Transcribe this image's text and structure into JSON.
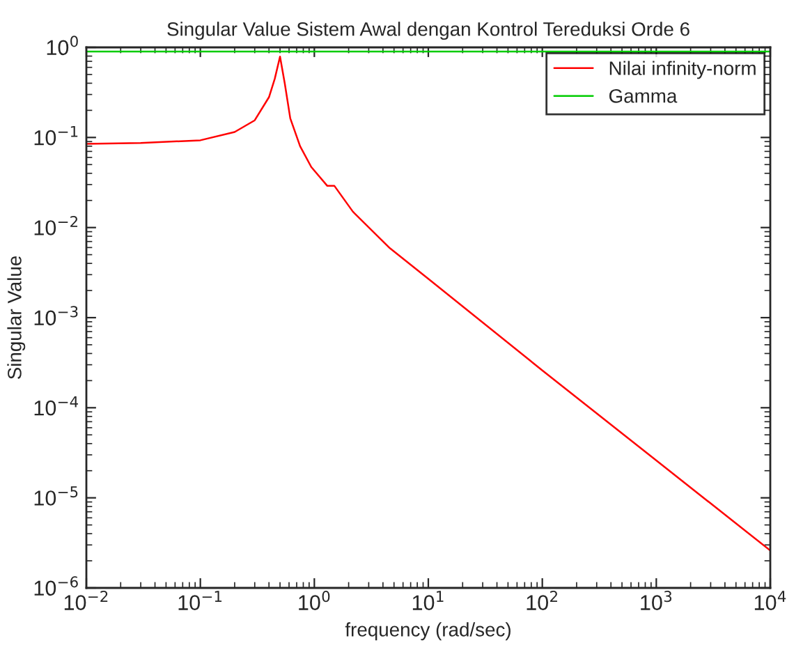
{
  "chart_data": {
    "type": "line",
    "title": "Singular Value Sistem Awal dengan Kontrol Tereduksi Orde 6",
    "xlabel": "frequency (rad/sec)",
    "ylabel": "Singular Value",
    "log": "xy",
    "grid": false,
    "legend": "top right",
    "marker": "none",
    "line_style": "solid",
    "xlim": [
      0.01,
      10000
    ],
    "ylim": [
      1e-06,
      1
    ],
    "xticks": [
      {
        "value": 0.01,
        "label": "10$^{−2}$"
      },
      {
        "value": 0.1,
        "label": "10$^{−1}$"
      },
      {
        "value": 1,
        "label": "10$^{0}$"
      },
      {
        "value": 10,
        "label": "10$^{1}$"
      },
      {
        "value": 100,
        "label": "10$^{2}$"
      },
      {
        "value": 1000,
        "label": "10$^{3}$"
      },
      {
        "value": 10000,
        "label": "10$^{4}$"
      }
    ],
    "yticks": [
      {
        "value": 1e-06,
        "label": "10$^{−6}$"
      },
      {
        "value": 1e-05,
        "label": "10$^{−5}$"
      },
      {
        "value": 0.0001,
        "label": "10$^{−4}$"
      },
      {
        "value": 0.001,
        "label": "10$^{−3}$"
      },
      {
        "value": 0.01,
        "label": "10$^{−2}$"
      },
      {
        "value": 0.1,
        "label": "10$^{−1}$"
      },
      {
        "value": 1,
        "label": "10$^{0}$"
      }
    ],
    "series": [
      {
        "name": "Nilai infinity-norm",
        "color": "#ff0000",
        "x": [
          0.01,
          0.03,
          0.1,
          0.2,
          0.3,
          0.4,
          0.45,
          0.5,
          0.55,
          0.615,
          0.75,
          0.94,
          1.3,
          1.5,
          2.18,
          4.6,
          10,
          100,
          1000,
          10000
        ],
        "values": [
          0.085,
          0.087,
          0.093,
          0.115,
          0.155,
          0.28,
          0.45,
          0.79,
          0.4,
          0.163,
          0.08,
          0.047,
          0.029,
          0.029,
          0.015,
          0.0059,
          0.0027,
          0.00026,
          2.6e-05,
          2.6e-06
        ]
      },
      {
        "name": "Gamma",
        "color": "#00cc00",
        "x": [
          0.01,
          10000
        ],
        "values": [
          0.9,
          0.9
        ]
      }
    ]
  }
}
